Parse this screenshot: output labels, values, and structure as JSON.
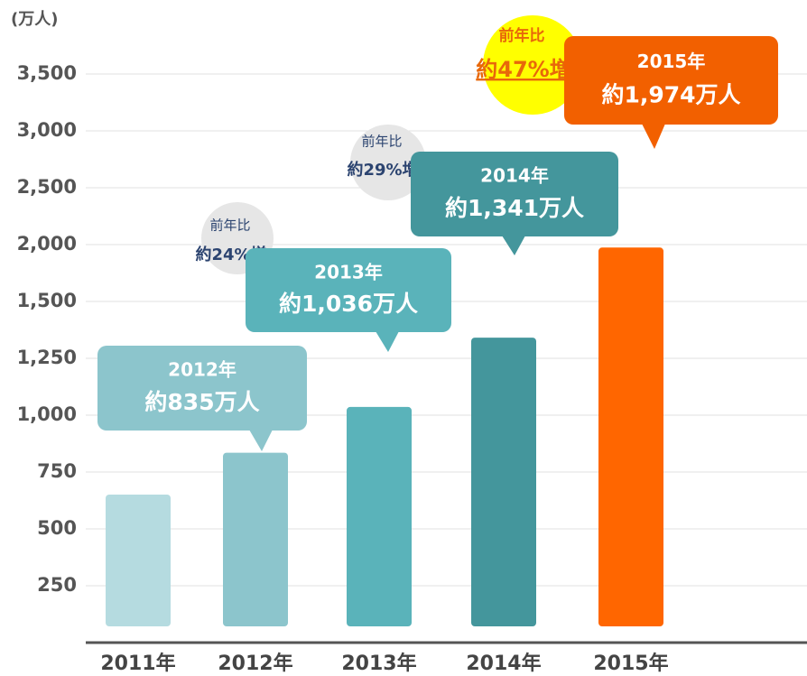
{
  "chart_data": {
    "type": "bar",
    "y_label": "(万人)",
    "categories": [
      "2011年",
      "2012年",
      "2013年",
      "2014年",
      "2015年"
    ],
    "values": [
      651,
      835,
      1036,
      1341,
      1974
    ],
    "value_labels": [
      null,
      "約835万人",
      "約1,036万人",
      "約1,341万人",
      "約1,974万人"
    ],
    "colors": [
      "#b5dbe0",
      "#8cc5cc",
      "#5ab3ba",
      "#44969c",
      "#ff6600"
    ],
    "ylim": [
      0,
      3500
    ],
    "yticks": [
      250,
      500,
      750,
      {
        "value": 1000,
        "label": "1,000"
      },
      {
        "value": 1250,
        "label": "1,250"
      },
      {
        "value": 1500,
        "label": "1,500"
      },
      {
        "value": 2000,
        "label": "2,000"
      },
      {
        "value": 2500,
        "label": "2,500"
      },
      {
        "value": 3000,
        "label": "3,000"
      },
      {
        "value": 3500,
        "label": "3,500"
      }
    ],
    "grid": true,
    "growth_labels": [
      {
        "title": "前年比",
        "label": "約24%増"
      },
      {
        "title": "前年比",
        "label": "約29%増"
      },
      {
        "title": "前年比",
        "label": "約47%増"
      }
    ]
  }
}
